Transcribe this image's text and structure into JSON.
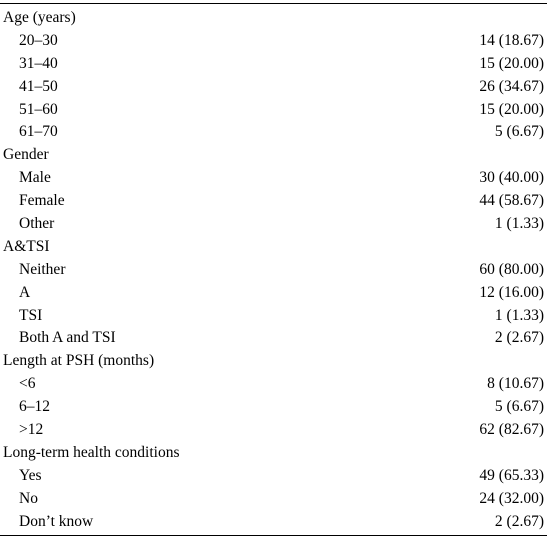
{
  "groups": [
    {
      "header": "Age (years)",
      "items": [
        {
          "label": "20–30",
          "value": "14 (18.67)"
        },
        {
          "label": "31–40",
          "value": "15 (20.00)"
        },
        {
          "label": "41–50",
          "value": "26 (34.67)"
        },
        {
          "label": "51–60",
          "value": "15 (20.00)"
        },
        {
          "label": "61–70",
          "value": "5 (6.67)"
        }
      ]
    },
    {
      "header": "Gender",
      "items": [
        {
          "label": "Male",
          "value": "30 (40.00)"
        },
        {
          "label": "Female",
          "value": "44 (58.67)"
        },
        {
          "label": "Other",
          "value": "1 (1.33)"
        }
      ]
    },
    {
      "header": "A&TSI",
      "items": [
        {
          "label": "Neither",
          "value": "60 (80.00)"
        },
        {
          "label": "A",
          "value": "12 (16.00)"
        },
        {
          "label": "TSI",
          "value": "1 (1.33)"
        },
        {
          "label": "Both A and TSI",
          "value": "2 (2.67)"
        }
      ]
    },
    {
      "header": "Length at PSH (months)",
      "items": [
        {
          "label": "<6",
          "value": "8 (10.67)"
        },
        {
          "label": "6–12",
          "value": "5 (6.67)"
        },
        {
          "label": ">12",
          "value": "62 (82.67)"
        }
      ]
    },
    {
      "header": "Long-term health conditions",
      "items": [
        {
          "label": "Yes",
          "value": "49 (65.33)"
        },
        {
          "label": "No",
          "value": "24 (32.00)"
        },
        {
          "label": "Don’t know",
          "value": "2 (2.67)"
        }
      ]
    }
  ]
}
